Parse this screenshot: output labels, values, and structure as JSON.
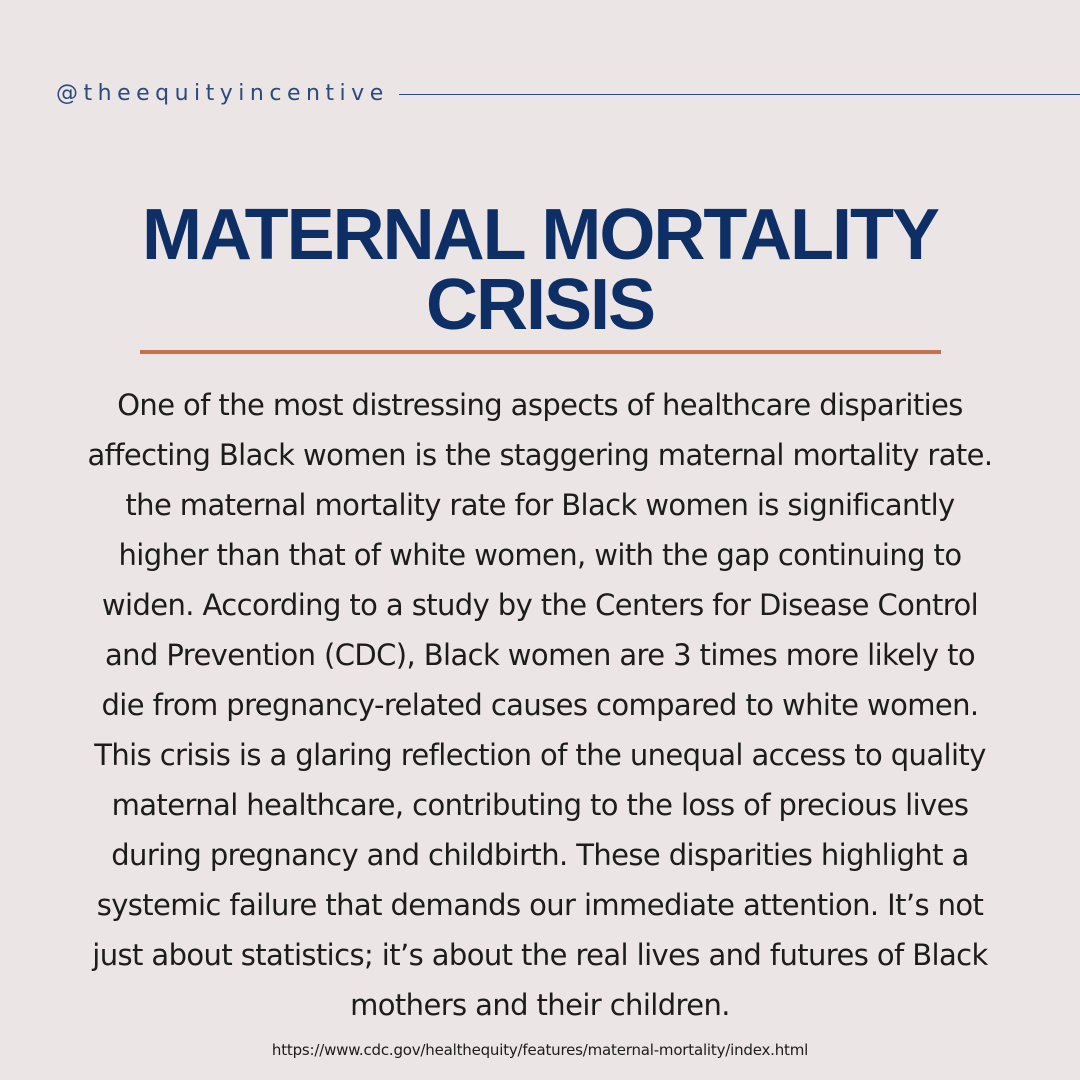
{
  "header": {
    "handle": "@theequityincentive"
  },
  "title": {
    "lines": [
      "MATERNAL MORTALITY",
      "CRISIS"
    ]
  },
  "body": {
    "lines": [
      "One of the most distressing aspects of healthcare disparities",
      "affecting Black women is the staggering maternal mortality rate.",
      "the maternal mortality rate for Black women is significantly",
      "higher than that of white women, with the gap continuing to",
      "widen. According to a study by the Centers for Disease Control",
      "and Prevention (CDC), Black women are 3 times more likely to",
      "die from pregnancy-related causes compared to white women.",
      "This crisis is a glaring reflection of the unequal access to quality",
      "maternal healthcare, contributing to the loss of precious lives",
      "during pregnancy and childbirth. These disparities highlight a",
      "systemic failure that demands our immediate attention. It’s not",
      "just about statistics; it’s about the real lives and futures of Black",
      "mothers and their children."
    ]
  },
  "source": {
    "url": "https://www.cdc.gov/healthequity/features/maternal-mortality/index.html"
  },
  "colors": {
    "background": "#ebe5e5",
    "title": "#0d2f66",
    "accent_rule": "#c6704c",
    "handle": "#2b4a7c",
    "body_text": "#1c1c1c"
  }
}
